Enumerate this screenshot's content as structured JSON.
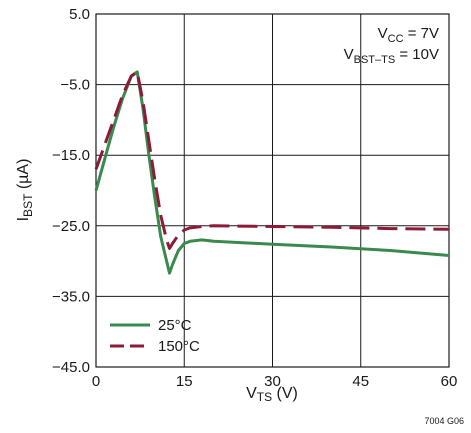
{
  "chart_data": {
    "type": "line",
    "xlabel": {
      "main": "V",
      "sub": "TS",
      "tail": " (V)"
    },
    "ylabel": {
      "main": "I",
      "sub": "BST",
      "tail": " (µA)"
    },
    "xlim": [
      0,
      60
    ],
    "ylim": [
      -45,
      5
    ],
    "x_ticks": [
      0,
      15,
      30,
      45,
      60
    ],
    "x_tick_labels": [
      "0",
      "15",
      "30",
      "45",
      "60"
    ],
    "y_ticks": [
      5,
      -5,
      -15,
      -25,
      -35,
      -45
    ],
    "y_tick_labels": [
      "5.0",
      "−5.0",
      "−15.0",
      "−25.0",
      "−35.0",
      "−45.0"
    ],
    "grid": true,
    "legend_position": "bottom-left",
    "annotation": {
      "line1": {
        "main": "V",
        "sub": "CC",
        "tail": " = 7V"
      },
      "line2": {
        "main": "V",
        "sub": "BST–TS",
        "tail": " = 10V"
      }
    },
    "figure_id": "7004 G06",
    "series": [
      {
        "name": "25°C",
        "color": "#3a8a4e",
        "style": "solid",
        "x": [
          0,
          1.5,
          3,
          4.5,
          6,
          7,
          8,
          9,
          10,
          11,
          12,
          12.5,
          13,
          14,
          15,
          16,
          18,
          20,
          30,
          40,
          50,
          60
        ],
        "y": [
          -20,
          -15.5,
          -11,
          -7,
          -3.8,
          -3.2,
          -8.5,
          -15,
          -21,
          -26.5,
          -30,
          -31.7,
          -30.5,
          -28.5,
          -27.5,
          -27.2,
          -27.0,
          -27.2,
          -27.6,
          -28.0,
          -28.5,
          -29.2
        ]
      },
      {
        "name": "150°C",
        "color": "#8c1b37",
        "style": "dashed",
        "x": [
          0,
          1.5,
          3,
          4.5,
          6,
          7,
          8,
          9,
          10,
          11,
          12,
          12.5,
          13,
          14,
          15,
          16,
          18,
          20,
          30,
          40,
          50,
          60
        ],
        "y": [
          -17,
          -13.5,
          -10,
          -6.5,
          -3.8,
          -3.2,
          -7.5,
          -13,
          -18.5,
          -23.5,
          -27,
          -28.2,
          -27.5,
          -26.3,
          -25.6,
          -25.3,
          -25.1,
          -25.0,
          -25.1,
          -25.2,
          -25.4,
          -25.5
        ]
      }
    ]
  }
}
